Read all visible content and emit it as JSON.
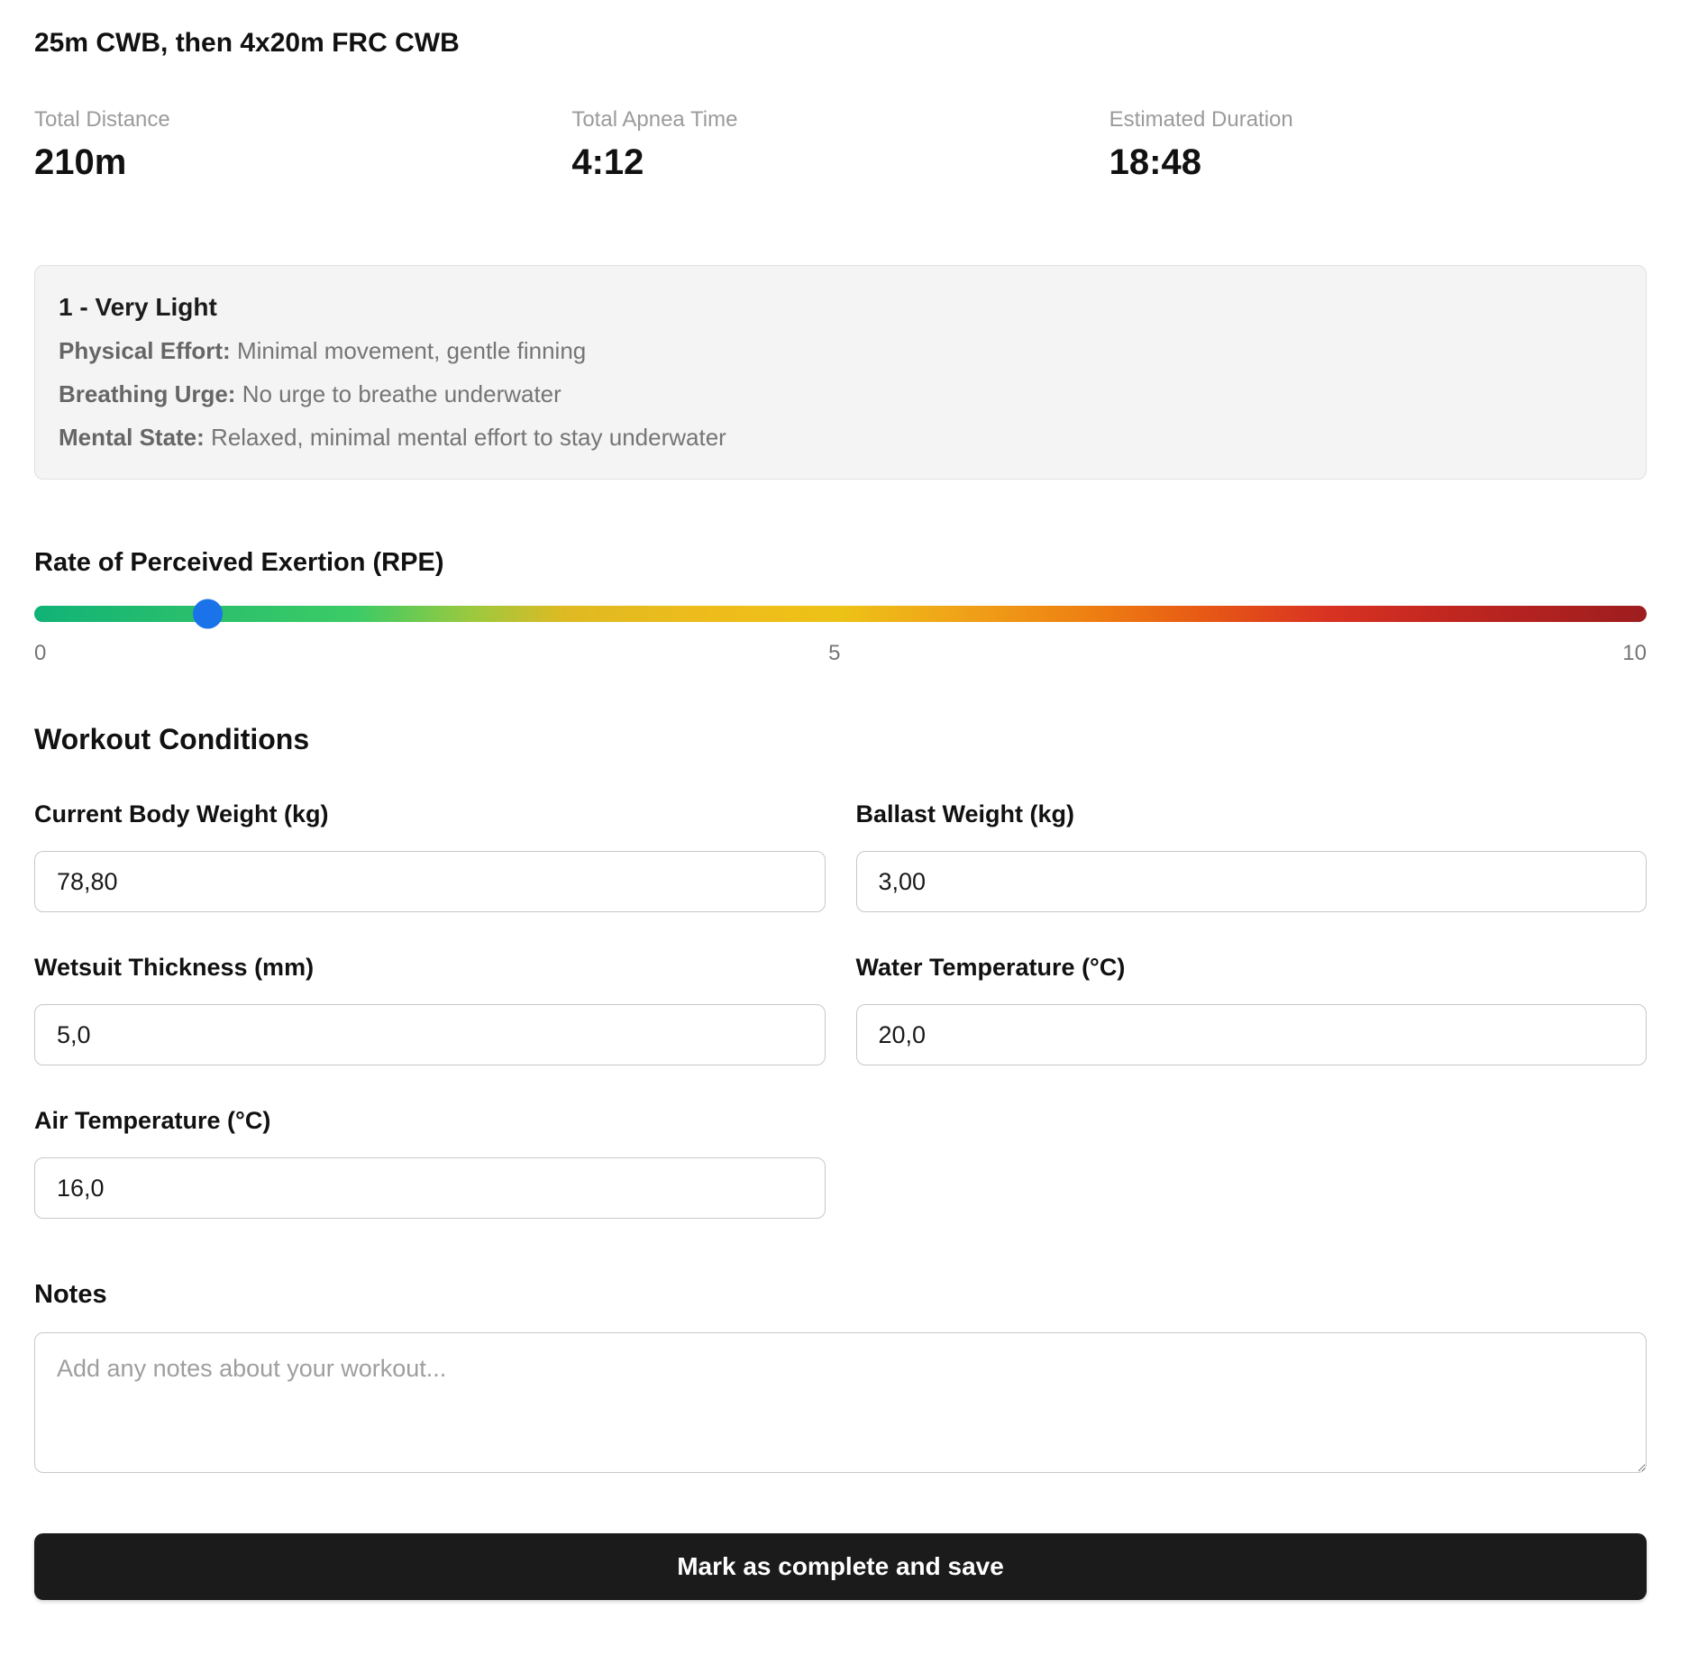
{
  "title": "25m CWB, then 4x20m FRC CWB",
  "stats": [
    {
      "label": "Total Distance",
      "value": "210m"
    },
    {
      "label": "Total Apnea Time",
      "value": "4:12"
    },
    {
      "label": "Estimated Duration",
      "value": "18:48"
    }
  ],
  "rpe_info": {
    "title": "1 - Very Light",
    "details": [
      {
        "key": "Physical Effort:",
        "text": " Minimal movement, gentle finning"
      },
      {
        "key": "Breathing Urge:",
        "text": " No urge to breathe underwater"
      },
      {
        "key": "Mental State:",
        "text": " Relaxed, minimal mental effort to stay underwater"
      }
    ]
  },
  "rpe_slider": {
    "label": "Rate of Perceived Exertion (RPE)",
    "value": 1,
    "min": 0,
    "max": 10,
    "ticks": [
      "0",
      "5",
      "10"
    ],
    "thumb_color": "#1a73e8"
  },
  "conditions": {
    "heading": "Workout Conditions",
    "fields": [
      {
        "label": "Current Body Weight (kg)",
        "value": "78,80"
      },
      {
        "label": "Ballast Weight (kg)",
        "value": "3,00"
      },
      {
        "label": "Wetsuit Thickness (mm)",
        "value": "5,0"
      },
      {
        "label": "Water Temperature (°C)",
        "value": "20,0"
      },
      {
        "label": "Air Temperature (°C)",
        "value": "16,0"
      }
    ]
  },
  "notes": {
    "heading": "Notes",
    "placeholder": "Add any notes about your workout..."
  },
  "actions": {
    "submit_label": "Mark as complete and save"
  }
}
